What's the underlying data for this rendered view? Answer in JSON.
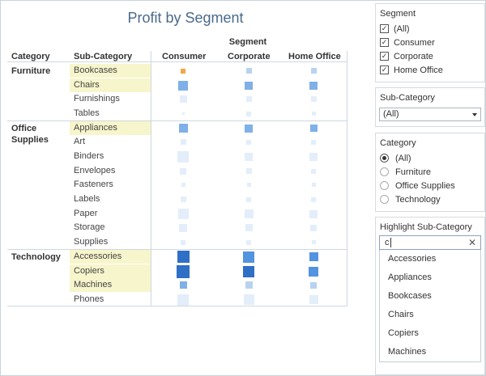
{
  "title": "Profit by Segment",
  "segment_header": "Segment",
  "columns": {
    "category": "Category",
    "subcategory": "Sub-Category",
    "consumer": "Consumer",
    "corporate": "Corporate",
    "home_office": "Home Office"
  },
  "categories": [
    {
      "name_line1": "Furniture",
      "name_line2": ""
    },
    {
      "name_line1": "Office",
      "name_line2": "Supplies"
    },
    {
      "name_line1": "Technology",
      "name_line2": ""
    }
  ],
  "subcategories": [
    "Bookcases",
    "Chairs",
    "Furnishings",
    "Tables",
    "Appliances",
    "Art",
    "Binders",
    "Envelopes",
    "Fasteners",
    "Labels",
    "Paper",
    "Storage",
    "Supplies",
    "Accessories",
    "Copiers",
    "Machines",
    "Phones"
  ],
  "highlighted": [
    "Bookcases",
    "Chairs",
    "Appliances",
    "Accessories",
    "Copiers",
    "Machines"
  ],
  "profit_marks": [
    {
      "sub": "Bookcases",
      "consumer": {
        "size": 0.35,
        "shade": "negative"
      },
      "corporate": {
        "size": 0.45,
        "shade": "light"
      },
      "home_office": {
        "size": 0.45,
        "shade": "light"
      }
    },
    {
      "sub": "Chairs",
      "consumer": {
        "size": 0.75,
        "shade": "mid"
      },
      "corporate": {
        "size": 0.65,
        "shade": "mid"
      },
      "home_office": {
        "size": 0.6,
        "shade": "mid"
      }
    },
    {
      "sub": "Furnishings",
      "consumer": {
        "size": 0.55,
        "shade": "pale"
      },
      "corporate": {
        "size": 0.45,
        "shade": "pale"
      },
      "home_office": {
        "size": 0.45,
        "shade": "pale"
      }
    },
    {
      "sub": "Tables",
      "consumer": {
        "size": 0.1,
        "shade": "pale"
      },
      "corporate": {
        "size": 0.35,
        "shade": "pale"
      },
      "home_office": {
        "size": 0.3,
        "shade": "pale"
      }
    },
    {
      "sub": "Appliances",
      "consumer": {
        "size": 0.7,
        "shade": "mid"
      },
      "corporate": {
        "size": 0.6,
        "shade": "mid"
      },
      "home_office": {
        "size": 0.55,
        "shade": "mid"
      }
    },
    {
      "sub": "Art",
      "consumer": {
        "size": 0.45,
        "shade": "pale"
      },
      "corporate": {
        "size": 0.4,
        "shade": "pale"
      },
      "home_office": {
        "size": 0.35,
        "shade": "pale"
      }
    },
    {
      "sub": "Binders",
      "consumer": {
        "size": 0.85,
        "shade": "pale"
      },
      "corporate": {
        "size": 0.65,
        "shade": "pale"
      },
      "home_office": {
        "size": 0.6,
        "shade": "pale"
      }
    },
    {
      "sub": "Envelopes",
      "consumer": {
        "size": 0.5,
        "shade": "pale"
      },
      "corporate": {
        "size": 0.45,
        "shade": "pale"
      },
      "home_office": {
        "size": 0.4,
        "shade": "pale"
      }
    },
    {
      "sub": "Fasteners",
      "consumer": {
        "size": 0.3,
        "shade": "pale"
      },
      "corporate": {
        "size": 0.3,
        "shade": "pale"
      },
      "home_office": {
        "size": 0.3,
        "shade": "pale"
      }
    },
    {
      "sub": "Labels",
      "consumer": {
        "size": 0.45,
        "shade": "pale"
      },
      "corporate": {
        "size": 0.4,
        "shade": "pale"
      },
      "home_office": {
        "size": 0.35,
        "shade": "pale"
      }
    },
    {
      "sub": "Paper",
      "consumer": {
        "size": 0.8,
        "shade": "pale"
      },
      "corporate": {
        "size": 0.7,
        "shade": "pale"
      },
      "home_office": {
        "size": 0.6,
        "shade": "pale"
      }
    },
    {
      "sub": "Storage",
      "consumer": {
        "size": 0.65,
        "shade": "pale"
      },
      "corporate": {
        "size": 0.55,
        "shade": "pale"
      },
      "home_office": {
        "size": 0.5,
        "shade": "pale"
      }
    },
    {
      "sub": "Supplies",
      "consumer": {
        "size": 0.35,
        "shade": "pale"
      },
      "corporate": {
        "size": 0.35,
        "shade": "pale"
      },
      "home_office": {
        "size": 0.3,
        "shade": "pale"
      }
    },
    {
      "sub": "Accessories",
      "consumer": {
        "size": 0.95,
        "shade": "dark"
      },
      "corporate": {
        "size": 0.85,
        "shade": "strong"
      },
      "home_office": {
        "size": 0.7,
        "shade": "strong"
      }
    },
    {
      "sub": "Copiers",
      "consumer": {
        "size": 1.0,
        "shade": "dark"
      },
      "corporate": {
        "size": 0.9,
        "shade": "dark"
      },
      "home_office": {
        "size": 0.75,
        "shade": "strong"
      }
    },
    {
      "sub": "Machines",
      "consumer": {
        "size": 0.55,
        "shade": "mid"
      },
      "corporate": {
        "size": 0.55,
        "shade": "light"
      },
      "home_office": {
        "size": 0.5,
        "shade": "light"
      }
    },
    {
      "sub": "Phones",
      "consumer": {
        "size": 0.9,
        "shade": "pale"
      },
      "corporate": {
        "size": 0.8,
        "shade": "pale"
      },
      "home_office": {
        "size": 0.7,
        "shade": "pale"
      }
    }
  ],
  "colors": {
    "negative": "#f5a742",
    "pale": "#e3eefa",
    "light": "#b8d3f0",
    "mid": "#7fb0e8",
    "strong": "#5393e0",
    "dark": "#2f6fc6",
    "highlight": "#f7f5cc",
    "title": "#4a6a8c"
  },
  "panels": {
    "segment": {
      "title": "Segment",
      "items": [
        {
          "label": "(All)",
          "checked": true
        },
        {
          "label": "Consumer",
          "checked": true
        },
        {
          "label": "Corporate",
          "checked": true
        },
        {
          "label": "Home Office",
          "checked": true
        }
      ]
    },
    "subcategory": {
      "title": "Sub-Category",
      "selected": "(All)"
    },
    "category": {
      "title": "Category",
      "items": [
        {
          "label": "(All)",
          "selected": true
        },
        {
          "label": "Furniture",
          "selected": false
        },
        {
          "label": "Office Supplies",
          "selected": false
        },
        {
          "label": "Technology",
          "selected": false
        }
      ]
    },
    "highlight": {
      "title": "Highlight Sub-Category",
      "search_value": "c",
      "clear_icon": "close-icon",
      "options": [
        "Accessories",
        "Appliances",
        "Bookcases",
        "Chairs",
        "Copiers",
        "Machines"
      ]
    }
  }
}
